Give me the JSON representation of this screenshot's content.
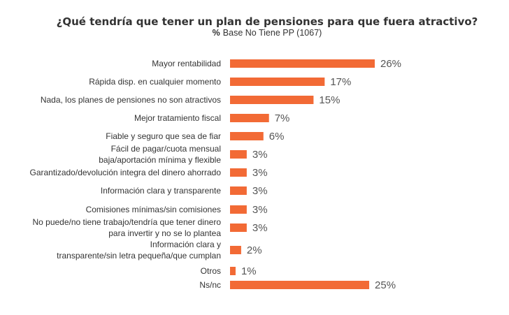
{
  "chart_data": {
    "type": "bar",
    "orientation": "horizontal",
    "title": "¿Qué tendría que tener un plan de pensiones para que fuera atractivo?",
    "subtitle_prefix": "%",
    "subtitle": "Base No Tiene PP (1067)",
    "xlabel": "",
    "ylabel": "",
    "xlim": [
      0,
      26
    ],
    "grid": false,
    "legend": "none",
    "bar_color": "#F26A35",
    "value_suffix": "%",
    "categories": [
      [
        "Mayor rentabilidad"
      ],
      [
        "Rápida disp. en cualquier momento"
      ],
      [
        "Nada, los planes de pensiones no son atractivos"
      ],
      [
        "Mejor tratamiento fiscal"
      ],
      [
        "Fiable y seguro que sea de fiar"
      ],
      [
        "Fácil de pagar/cuota mensual",
        "baja/aportación mínima y flexible"
      ],
      [
        "Garantizado/devolución integra del dinero ahorrado"
      ],
      [
        "Información clara y transparente"
      ],
      [
        "Comisiones mínimas/sin comisiones"
      ],
      [
        "No puede/no tiene trabajo/tendría que tener dinero",
        "para invertir y no se lo plantea"
      ],
      [
        "Información clara y",
        "transparente/sin letra pequeña/que cumplan"
      ],
      [
        "Otros"
      ],
      [
        "Ns/nc"
      ]
    ],
    "values": [
      26,
      17,
      15,
      7,
      6,
      3,
      3,
      3,
      3,
      3,
      2,
      1,
      25
    ]
  }
}
